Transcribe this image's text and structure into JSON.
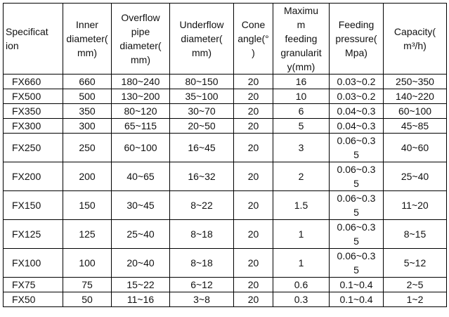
{
  "table": {
    "headers": [
      "Specificat\nion",
      "Inner\ndiameter(\nmm)",
      "Overflow\npipe\ndiameter(\nmm)",
      "Underflow\ndiameter(\nmm)",
      "Cone\nangle(°\n)",
      "Maximu\nm\nfeeding\ngranularit\ny(mm)",
      "Feeding\npressure(\nMpa)",
      "Capacity(\nm³/h)"
    ],
    "rows": [
      [
        "FX660",
        "660",
        "180~240",
        "80~150",
        "20",
        "16",
        "0.03~0.2",
        "250~350"
      ],
      [
        "FX500",
        "500",
        "130~200",
        "35~100",
        "20",
        "10",
        "0.03~0.2",
        "140~220"
      ],
      [
        "FX350",
        "350",
        "80~120",
        "30~70",
        "20",
        "6",
        "0.04~0.3",
        "60~100"
      ],
      [
        "FX300",
        "300",
        "65~115",
        "20~50",
        "20",
        "5",
        "0.04~0.3",
        "45~85"
      ],
      [
        "FX250",
        "250",
        "60~100",
        "16~45",
        "20",
        "3",
        "0.06~0.3\n5",
        "40~60"
      ],
      [
        "FX200",
        "200",
        "40~65",
        "16~32",
        "20",
        "2",
        "0.06~0.3\n5",
        "25~40"
      ],
      [
        "FX150",
        "150",
        "30~45",
        "8~22",
        "20",
        "1.5",
        "0.06~0.3\n5",
        "11~20"
      ],
      [
        "FX125",
        "125",
        "25~40",
        "8~18",
        "20",
        "1",
        "0.06~0.3\n5",
        "8~15"
      ],
      [
        "FX100",
        "100",
        "20~40",
        "8~18",
        "20",
        "1",
        "0.06~0.3\n5",
        "5~12"
      ],
      [
        "FX75",
        "75",
        "15~22",
        "6~12",
        "20",
        "0.6",
        "0.1~0.4",
        "2~5"
      ],
      [
        "FX50",
        "50",
        "11~16",
        "3~8",
        "20",
        "0.3",
        "0.1~0.4",
        "1~2"
      ]
    ]
  }
}
